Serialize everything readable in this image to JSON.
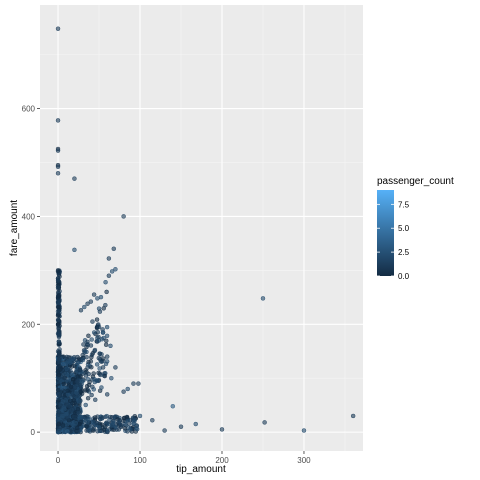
{
  "chart_data": {
    "type": "scatter",
    "xlabel": "tip_amount",
    "ylabel": "fare_amount",
    "xlim": [
      -22,
      372
    ],
    "ylim": [
      -35,
      792
    ],
    "x_ticks": [
      0,
      100,
      200,
      300
    ],
    "y_ticks": [
      0,
      200,
      400,
      600
    ],
    "x_minor": [
      50,
      150,
      250,
      350
    ],
    "y_minor": [
      100,
      300,
      500,
      700
    ],
    "grid": true,
    "background": "#ebebeb",
    "legend": {
      "title": "passenger_count",
      "placement": "right",
      "range": [
        0,
        9
      ],
      "ticks": [
        7.5,
        5.0,
        2.5,
        0.0
      ],
      "tick_labels": [
        "7.5",
        "5.0",
        "2.5",
        "0.0"
      ],
      "color_low": "#132b43",
      "color_high": "#56b1f7"
    },
    "points": [
      {
        "x": 0,
        "y": 748,
        "c": 1
      },
      {
        "x": 0,
        "y": 578,
        "c": 1
      },
      {
        "x": 0,
        "y": 525,
        "c": 0
      },
      {
        "x": 0,
        "y": 522,
        "c": 1
      },
      {
        "x": 0,
        "y": 495,
        "c": 0
      },
      {
        "x": 0,
        "y": 492,
        "c": 1
      },
      {
        "x": 0,
        "y": 480,
        "c": 1
      },
      {
        "x": 20,
        "y": 470,
        "c": 1
      },
      {
        "x": 80,
        "y": 400,
        "c": 1
      },
      {
        "x": 20,
        "y": 338,
        "c": 2
      },
      {
        "x": 68,
        "y": 340,
        "c": 1
      },
      {
        "x": 62,
        "y": 322,
        "c": 1
      },
      {
        "x": 70,
        "y": 302,
        "c": 2
      },
      {
        "x": 66,
        "y": 298,
        "c": 2
      },
      {
        "x": 0,
        "y": 300,
        "c": 0
      },
      {
        "x": 0,
        "y": 298,
        "c": 0
      },
      {
        "x": 0,
        "y": 285,
        "c": 1
      },
      {
        "x": 0,
        "y": 272,
        "c": 0
      },
      {
        "x": 0,
        "y": 268,
        "c": 1
      },
      {
        "x": 58,
        "y": 278,
        "c": 2
      },
      {
        "x": 62,
        "y": 290,
        "c": 1
      },
      {
        "x": 44,
        "y": 255,
        "c": 1
      },
      {
        "x": 48,
        "y": 248,
        "c": 2
      },
      {
        "x": 40,
        "y": 242,
        "c": 1
      },
      {
        "x": 36,
        "y": 238,
        "c": 1
      },
      {
        "x": 32,
        "y": 232,
        "c": 2
      },
      {
        "x": 28,
        "y": 226,
        "c": 1
      },
      {
        "x": 250,
        "y": 248,
        "c": 2
      },
      {
        "x": 360,
        "y": 30,
        "c": 1
      },
      {
        "x": 300,
        "y": 3,
        "c": 2
      },
      {
        "x": 252,
        "y": 18,
        "c": 1
      },
      {
        "x": 200,
        "y": 5,
        "c": 1
      },
      {
        "x": 168,
        "y": 15,
        "c": 2
      },
      {
        "x": 140,
        "y": 48,
        "c": 3
      },
      {
        "x": 150,
        "y": 10,
        "c": 1
      },
      {
        "x": 130,
        "y": 3,
        "c": 1
      },
      {
        "x": 115,
        "y": 22,
        "c": 1
      },
      {
        "x": 100,
        "y": 30,
        "c": 2
      },
      {
        "x": 98,
        "y": 90,
        "c": 1
      },
      {
        "x": 92,
        "y": 90,
        "c": 1
      },
      {
        "x": 85,
        "y": 80,
        "c": 2
      },
      {
        "x": 80,
        "y": 75,
        "c": 1
      },
      {
        "x": 75,
        "y": 20,
        "c": 1
      },
      {
        "x": 70,
        "y": 10,
        "c": 2
      },
      {
        "x": 55,
        "y": 120,
        "c": 1
      },
      {
        "x": 60,
        "y": 140,
        "c": 1
      },
      {
        "x": 55,
        "y": 185,
        "c": 2
      },
      {
        "x": 50,
        "y": 195,
        "c": 1
      },
      {
        "x": 42,
        "y": 205,
        "c": 1
      },
      {
        "x": 64,
        "y": 160,
        "c": 2
      },
      {
        "x": 70,
        "y": 120,
        "c": 1
      },
      {
        "x": 65,
        "y": 100,
        "c": 2
      },
      {
        "x": 60,
        "y": 70,
        "c": 1
      },
      {
        "x": 0,
        "y": 250,
        "c": 0
      },
      {
        "x": 0,
        "y": 240,
        "c": 1
      },
      {
        "x": 0,
        "y": 232,
        "c": 0
      },
      {
        "x": 0,
        "y": 224,
        "c": 1
      },
      {
        "x": 0,
        "y": 216,
        "c": 0
      },
      {
        "x": 0,
        "y": 208,
        "c": 1
      },
      {
        "x": 0,
        "y": 200,
        "c": 0
      }
    ],
    "cloud_seed": 42
  }
}
